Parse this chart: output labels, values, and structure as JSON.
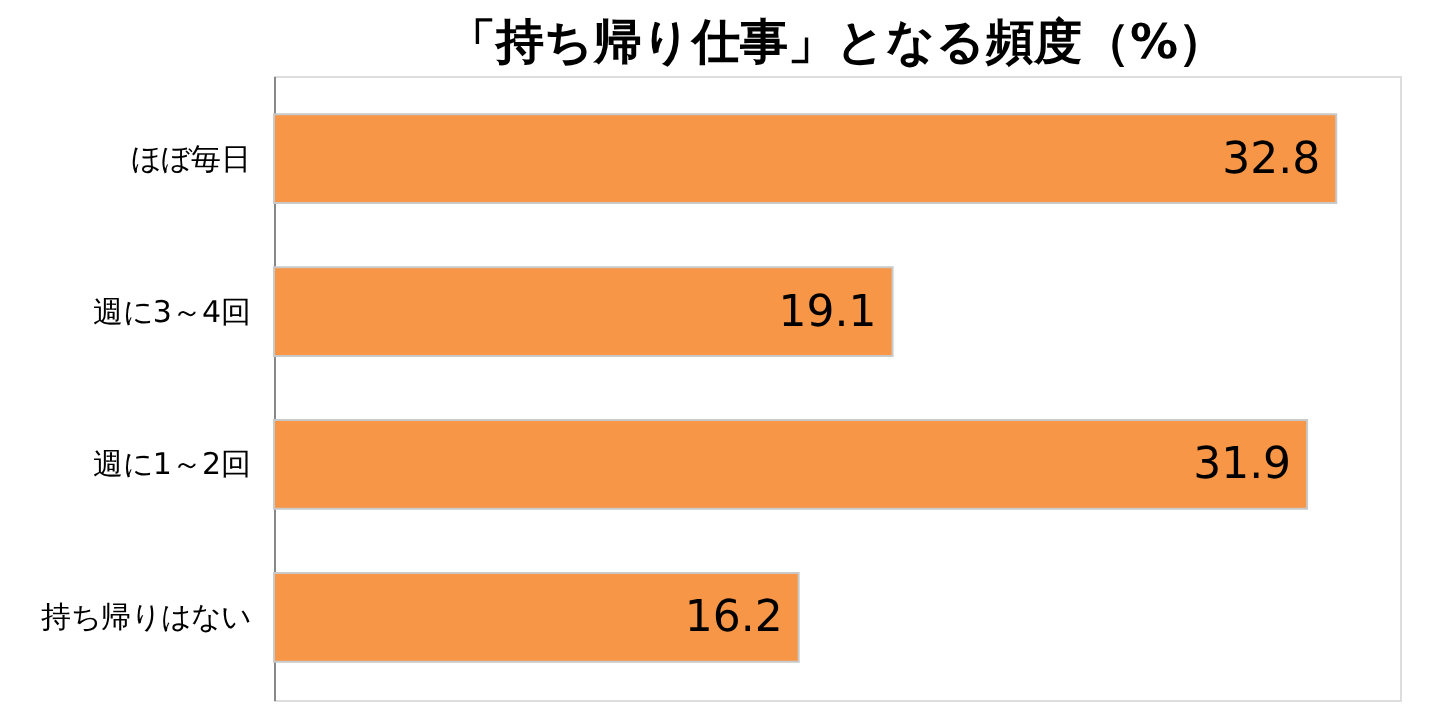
{
  "chart_data": {
    "type": "bar",
    "orientation": "horizontal",
    "title": "「持ち帰り仕事」となる頻度（%）",
    "categories": [
      "ほぼ毎日",
      "週に3～4回",
      "週に1～2回",
      "持ち帰りはない"
    ],
    "values": [
      32.8,
      19.1,
      31.9,
      16.2
    ],
    "color": "#f79646",
    "data_labels": true,
    "grid": false
  }
}
